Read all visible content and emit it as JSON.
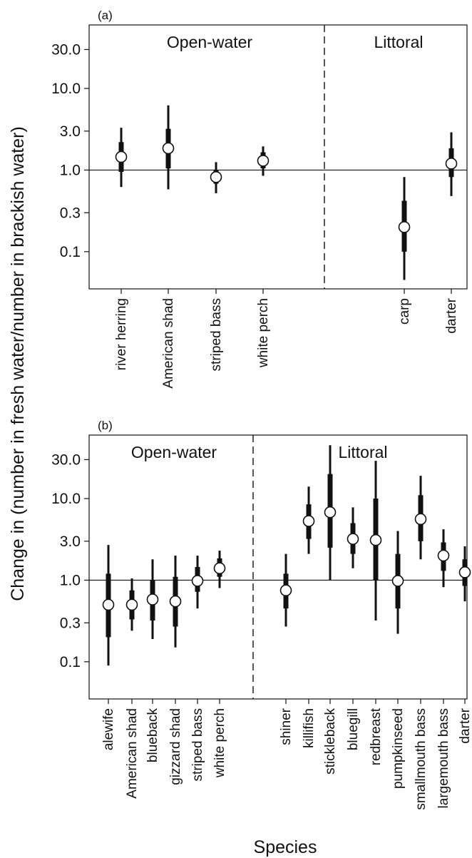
{
  "figure": {
    "ylabel": "Change in (number in fresh water/number in brackish water)",
    "xlabel": "Species"
  },
  "chart_data": [
    {
      "type": "scatter",
      "panel_label": "(a)",
      "yscale": "log",
      "ylim": [
        0.035,
        60
      ],
      "yticks": [
        0.1,
        0.3,
        1.0,
        3.0,
        10.0,
        30.0
      ],
      "ytick_labels": [
        "0.1",
        "0.3",
        "1.0",
        "3.0",
        "10.0",
        "30.0"
      ],
      "reference_line": 1.0,
      "regions": [
        {
          "label": "Open-water",
          "categories": [
            "river herring",
            "American shad",
            "striped bass",
            "white perch"
          ]
        },
        {
          "label": "Littoral",
          "categories": [
            "carp",
            "darter"
          ]
        }
      ],
      "series": [
        {
          "category": "river herring",
          "median": 1.45,
          "inner": [
            0.95,
            2.2
          ],
          "outer": [
            0.62,
            3.3
          ]
        },
        {
          "category": "American shad",
          "median": 1.85,
          "inner": [
            1.05,
            3.2
          ],
          "outer": [
            0.58,
            6.2
          ]
        },
        {
          "category": "striped bass",
          "median": 0.82,
          "inner": [
            0.68,
            1.0
          ],
          "outer": [
            0.52,
            1.25
          ]
        },
        {
          "category": "white perch",
          "median": 1.3,
          "inner": [
            1.05,
            1.65
          ],
          "outer": [
            0.85,
            1.95
          ]
        },
        {
          "category": "carp",
          "median": 0.2,
          "inner": [
            0.1,
            0.42
          ],
          "outer": [
            0.045,
            0.82
          ]
        },
        {
          "category": "darter",
          "median": 1.2,
          "inner": [
            0.82,
            1.85
          ],
          "outer": [
            0.48,
            2.9
          ]
        }
      ]
    },
    {
      "type": "scatter",
      "panel_label": "(b)",
      "yscale": "log",
      "ylim": [
        0.035,
        60
      ],
      "yticks": [
        0.1,
        0.3,
        1.0,
        3.0,
        10.0,
        30.0
      ],
      "ytick_labels": [
        "0.1",
        "0.3",
        "1.0",
        "3.0",
        "10.0",
        "30.0"
      ],
      "reference_line": 1.0,
      "regions": [
        {
          "label": "Open-water",
          "categories": [
            "alewife",
            "American shad",
            "blueback",
            "gizzard shad",
            "striped bass",
            "white perch"
          ]
        },
        {
          "label": "Littoral",
          "categories": [
            "shiner",
            "killifish",
            "stickleback",
            "bluegill",
            "redbreast",
            "pumpkinseed",
            "smallmouth bass",
            "largemouth bass",
            "darter"
          ]
        }
      ],
      "series": [
        {
          "category": "alewife",
          "median": 0.5,
          "inner": [
            0.2,
            1.2
          ],
          "outer": [
            0.09,
            2.7
          ]
        },
        {
          "category": "American shad",
          "median": 0.5,
          "inner": [
            0.33,
            0.75
          ],
          "outer": [
            0.24,
            1.05
          ]
        },
        {
          "category": "blueback",
          "median": 0.58,
          "inner": [
            0.32,
            1.0
          ],
          "outer": [
            0.19,
            1.8
          ]
        },
        {
          "category": "gizzard shad",
          "median": 0.55,
          "inner": [
            0.27,
            1.1
          ],
          "outer": [
            0.15,
            2.0
          ]
        },
        {
          "category": "striped bass",
          "median": 0.98,
          "inner": [
            0.72,
            1.45
          ],
          "outer": [
            0.45,
            2.0
          ]
        },
        {
          "category": "white perch",
          "median": 1.4,
          "inner": [
            1.1,
            1.85
          ],
          "outer": [
            0.8,
            2.3
          ]
        },
        {
          "category": "shiner",
          "median": 0.75,
          "inner": [
            0.45,
            1.2
          ],
          "outer": [
            0.27,
            2.1
          ]
        },
        {
          "category": "killifish",
          "median": 5.3,
          "inner": [
            3.2,
            8.5
          ],
          "outer": [
            2.1,
            14.0
          ]
        },
        {
          "category": "stickleback",
          "median": 6.8,
          "inner": [
            2.5,
            20.0
          ],
          "outer": [
            1.0,
            45.0
          ]
        },
        {
          "category": "bluegill",
          "median": 3.2,
          "inner": [
            2.1,
            5.0
          ],
          "outer": [
            1.4,
            7.8
          ]
        },
        {
          "category": "redbreast",
          "median": 3.1,
          "inner": [
            1.0,
            10.0
          ],
          "outer": [
            0.32,
            29.0
          ]
        },
        {
          "category": "pumpkinseed",
          "median": 0.98,
          "inner": [
            0.45,
            2.1
          ],
          "outer": [
            0.22,
            4.0
          ]
        },
        {
          "category": "smallmouth bass",
          "median": 5.6,
          "inner": [
            3.0,
            11.0
          ],
          "outer": [
            1.8,
            19.0
          ]
        },
        {
          "category": "largemouth bass",
          "median": 2.0,
          "inner": [
            1.3,
            2.9
          ],
          "outer": [
            0.82,
            4.2
          ]
        },
        {
          "category": "darter",
          "median": 1.25,
          "inner": [
            0.85,
            1.8
          ],
          "outer": [
            0.55,
            2.6
          ]
        }
      ]
    }
  ]
}
